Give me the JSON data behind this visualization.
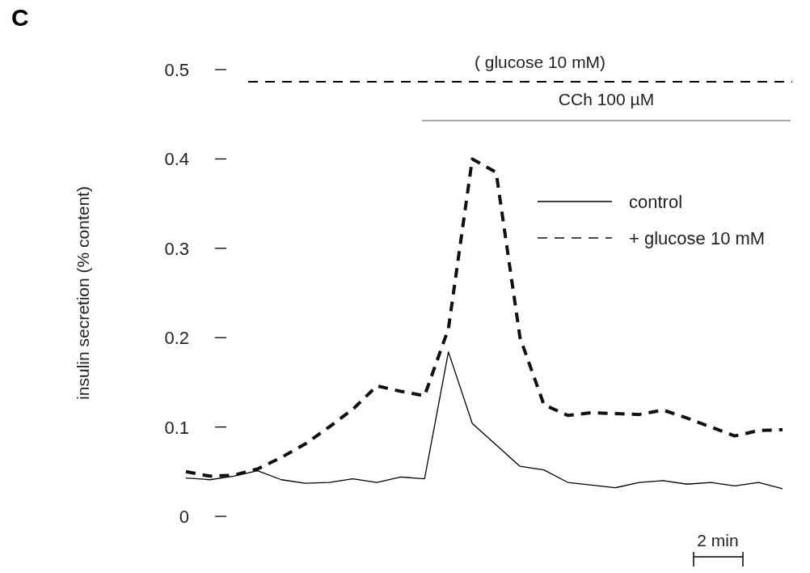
{
  "chart_data": {
    "type": "line",
    "title": "C",
    "ylabel": "insulin secretion (% content)",
    "categories": [
      null,
      null,
      null,
      null,
      null,
      null,
      null,
      null,
      null,
      null,
      null,
      null,
      null,
      null,
      null,
      null,
      null,
      null,
      null,
      null,
      null,
      null,
      null,
      null,
      null,
      null
    ],
    "ylim": [
      0,
      0.5
    ],
    "yticks": [
      0,
      0.1,
      0.2,
      0.3,
      0.4,
      0.5
    ],
    "legend": "top right",
    "series": [
      {
        "name": "control",
        "color": "#000000",
        "line_style": "solid",
        "values": [
          0.043,
          0.041,
          0.045,
          0.051,
          0.041,
          0.037,
          0.038,
          0.042,
          0.038,
          0.044,
          0.042,
          0.184,
          0.104,
          0.08,
          0.056,
          0.052,
          0.038,
          0.035,
          0.032,
          0.038,
          0.04,
          0.036,
          0.038,
          0.034,
          0.038,
          0.031
        ]
      },
      {
        "name": "+ glucose 10 mM",
        "color": "#111111",
        "line_style": "dashed",
        "values": [
          0.05,
          0.045,
          0.046,
          0.053,
          0.066,
          0.081,
          0.1,
          0.12,
          0.146,
          0.14,
          0.135,
          0.21,
          0.4,
          0.385,
          0.2,
          0.125,
          0.113,
          0.116,
          0.115,
          0.114,
          0.119,
          0.11,
          0.1,
          0.09,
          0.096,
          0.097
        ]
      }
    ],
    "annotations": [
      "( glucose 10 mM)",
      "CCh 100 µM",
      "2 min"
    ]
  }
}
